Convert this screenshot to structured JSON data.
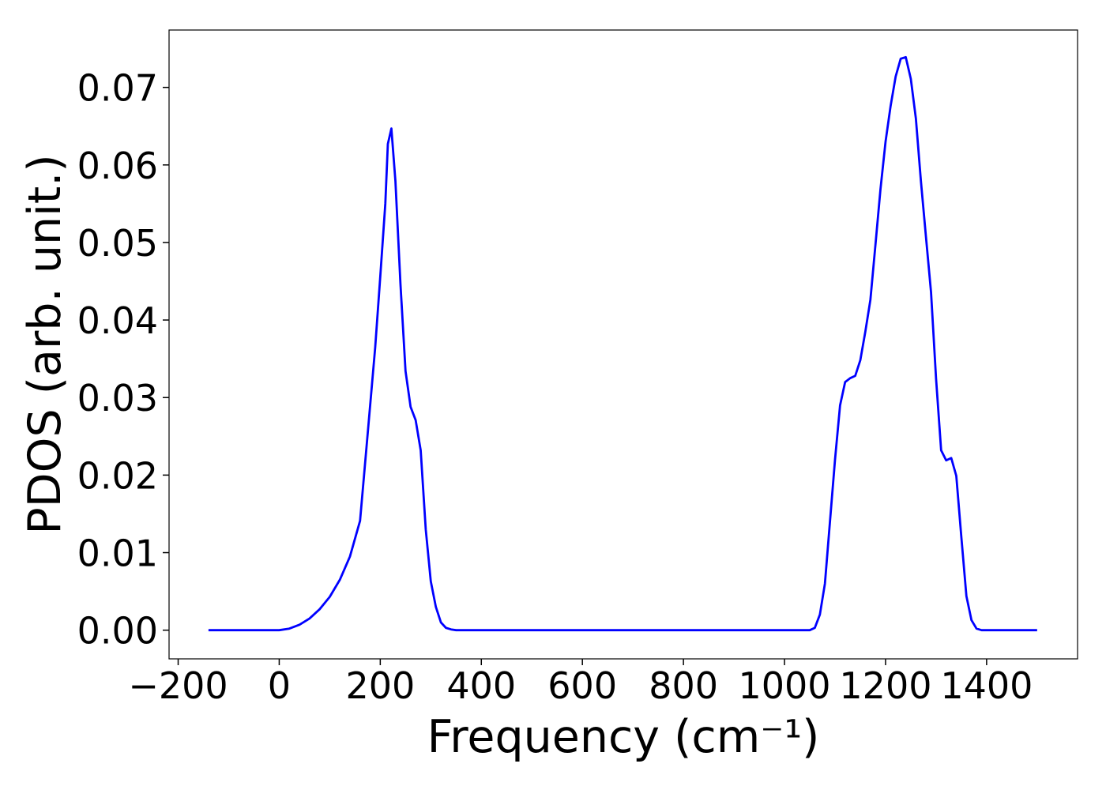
{
  "chart_data": {
    "type": "line",
    "xlabel": "Frequency (cm⁻¹)",
    "ylabel": "PDOS (arb. unit.)",
    "x": [
      -140,
      -100,
      -50,
      0,
      20,
      40,
      60,
      80,
      100,
      120,
      140,
      160,
      180,
      190,
      200,
      210,
      215,
      222,
      230,
      240,
      250,
      260,
      270,
      280,
      290,
      300,
      310,
      320,
      330,
      340,
      350,
      1050,
      1060,
      1070,
      1080,
      1090,
      1100,
      1110,
      1120,
      1130,
      1140,
      1150,
      1160,
      1170,
      1180,
      1190,
      1200,
      1210,
      1220,
      1230,
      1240,
      1250,
      1260,
      1270,
      1280,
      1290,
      1300,
      1310,
      1320,
      1330,
      1340,
      1350,
      1360,
      1370,
      1380,
      1390,
      1500
    ],
    "series": [
      {
        "color": "#0000ff",
        "values": [
          0,
          0,
          0,
          0,
          0.0002,
          0.0007,
          0.0015,
          0.0027,
          0.0043,
          0.0065,
          0.0095,
          0.0141,
          0.029,
          0.0365,
          0.0456,
          0.055,
          0.0627,
          0.0647,
          0.0579,
          0.0446,
          0.0334,
          0.0288,
          0.0271,
          0.0232,
          0.013,
          0.0063,
          0.003,
          0.001,
          0.0003,
          0.0001,
          0,
          0,
          0.0003,
          0.002,
          0.006,
          0.014,
          0.022,
          0.029,
          0.032,
          0.0325,
          0.0328,
          0.0348,
          0.0385,
          0.0426,
          0.0497,
          0.0569,
          0.063,
          0.0676,
          0.0714,
          0.0737,
          0.0739,
          0.0711,
          0.066,
          0.0579,
          0.0507,
          0.0436,
          0.0324,
          0.0232,
          0.0219,
          0.0222,
          0.0199,
          0.012,
          0.0044,
          0.0013,
          0.0002,
          0,
          0
        ]
      }
    ],
    "xlim": [
      -218,
      1580
    ],
    "xticks": [
      {
        "value": -200,
        "label": "−200"
      },
      0,
      200,
      400,
      600,
      800,
      1000,
      1200,
      1400
    ],
    "ylim": [
      -0.0037,
      0.0774
    ],
    "yticks": [
      {
        "value": 0,
        "label": "0.00"
      },
      0.01,
      0.02,
      0.03,
      0.04,
      0.05,
      0.06,
      0.07
    ],
    "grid": false
  }
}
